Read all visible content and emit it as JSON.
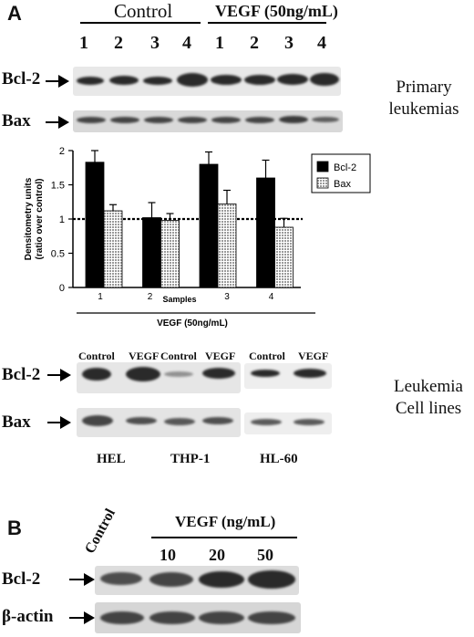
{
  "panel_a": {
    "letter": "A",
    "group_control": "Control",
    "group_vegf": "VEGF (50ng/mL)",
    "lanes": [
      "1",
      "2",
      "3",
      "4",
      "1",
      "2",
      "3",
      "4"
    ],
    "row1_label": "Bcl-2",
    "row2_label": "Bax",
    "side_label_line1": "Primary",
    "side_label_line2": "leukemias"
  },
  "chart_data": {
    "type": "bar",
    "categories": [
      "1",
      "2",
      "3",
      "4"
    ],
    "series": [
      {
        "name": "Bcl-2",
        "values": [
          1.83,
          1.02,
          1.8,
          1.6
        ],
        "errors": [
          0.17,
          0.22,
          0.18,
          0.26
        ],
        "color": "#000000"
      },
      {
        "name": "Bax",
        "values": [
          1.12,
          0.98,
          1.22,
          0.88
        ],
        "errors": [
          0.09,
          0.1,
          0.2,
          0.13
        ],
        "color": "#bbbbbb"
      }
    ],
    "xlabel": "Samples",
    "ylabel_line1": "Densitometry units",
    "ylabel_line2": "(ratio over control)",
    "ylim": [
      0,
      2
    ],
    "yticks": [
      "0",
      "0.5",
      "1",
      "1.5",
      "2"
    ],
    "reference_line": 1,
    "bottom_label": "VEGF (50ng/mL)",
    "legend": "top-right"
  },
  "cell_lines": {
    "col_labels": [
      "Control",
      "VEGF",
      "Control",
      "VEGF",
      "Control",
      "VEGF"
    ],
    "row1_label": "Bcl-2",
    "row2_label": "Bax",
    "line_names": [
      "HEL",
      "THP-1",
      "HL-60"
    ],
    "side_label_line1": "Leukemia",
    "side_label_line2": "Cell lines"
  },
  "panel_b": {
    "letter": "B",
    "control_label": "Control",
    "vegf_header": "VEGF (ng/mL)",
    "doses": [
      "10",
      "20",
      "50"
    ],
    "row1_label": "Bcl-2",
    "row2_label": "β-actin"
  },
  "colors": {
    "bar_bcl2": "#000000",
    "bar_bax": "#bbbbbb",
    "blot_bg": "#d9d9d9",
    "band": "#2a2a2a"
  }
}
